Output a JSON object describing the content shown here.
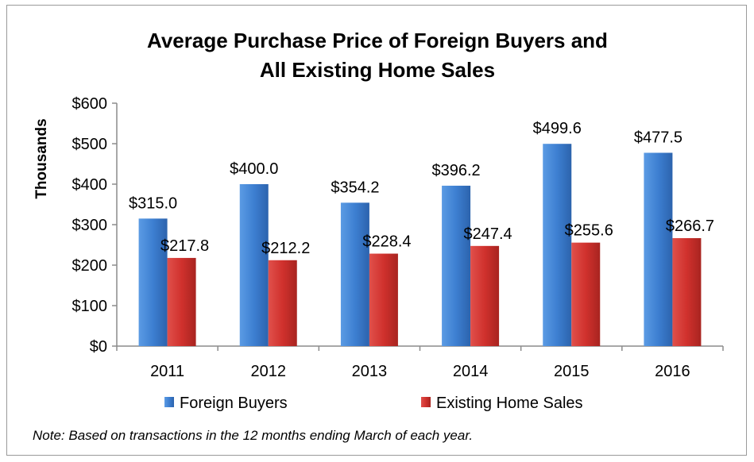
{
  "chart_data": {
    "type": "bar",
    "title_lines": [
      "Average Purchase Price of Foreign Buyers and",
      "All Existing Home Sales"
    ],
    "ylabel": "Thousands",
    "xlabel": "",
    "categories": [
      "2011",
      "2012",
      "2013",
      "2014",
      "2015",
      "2016"
    ],
    "ylim": [
      0,
      600
    ],
    "y_ticks": [
      0,
      100,
      200,
      300,
      400,
      500,
      600
    ],
    "y_tick_labels": [
      "$0",
      "$100",
      "$200",
      "$300",
      "$400",
      "$500",
      "$600"
    ],
    "grid": false,
    "legend_position": "bottom",
    "series": [
      {
        "name": "Foreign Buyers",
        "color": "#3d7fd1",
        "values": [
          315.0,
          400.0,
          354.2,
          396.2,
          499.6,
          477.5
        ],
        "labels": [
          "$315.0",
          "$400.0",
          "$354.2",
          "$396.2",
          "$499.6",
          "$477.5"
        ]
      },
      {
        "name": "Existing Home Sales",
        "color": "#d0312d",
        "values": [
          217.8,
          212.2,
          228.4,
          247.4,
          255.6,
          266.7
        ],
        "labels": [
          "$217.8",
          "$212.2",
          "$228.4",
          "$247.4",
          "$255.6",
          "$266.7"
        ]
      }
    ],
    "note": "Note: Based on transactions in the 12 months ending March of each year."
  }
}
